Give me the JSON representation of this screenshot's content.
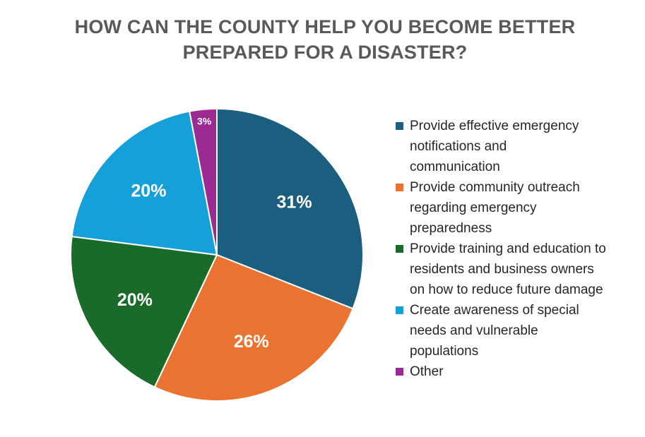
{
  "chart_data": {
    "type": "pie",
    "title": "HOW CAN THE COUNTY HELP YOU BECOME BETTER PREPARED FOR A DISASTER?",
    "title_lines": [
      "HOW CAN THE COUNTY HELP YOU BECOME BETTER",
      "PREPARED FOR A DISASTER?"
    ],
    "categories": [
      "Provide effective emergency notifications and communication",
      "Provide community outreach regarding emergency preparedness",
      "Provide training and education to residents and business owners on how to reduce future damage",
      "Create awareness of special needs and vulnerable populations",
      "Other"
    ],
    "legend_lines": [
      [
        "Provide effective emergency",
        "notifications and",
        "communication"
      ],
      [
        "Provide community outreach",
        "regarding emergency",
        "preparedness"
      ],
      [
        "Provide training and education to",
        "residents and business owners",
        "on how to reduce future damage"
      ],
      [
        "Create awareness of special",
        "needs and vulnerable",
        "populations"
      ],
      [
        "Other"
      ]
    ],
    "values": [
      31,
      26,
      20,
      20,
      3
    ],
    "data_labels": [
      "31%",
      "26%",
      "20%",
      "20%",
      "3%"
    ],
    "colors": [
      "#1b5e80",
      "#ea7331",
      "#1a6b2a",
      "#16a0d9",
      "#9c2a93"
    ],
    "start_angle": "12 o'clock",
    "direction": "clockwise",
    "legend_position": "right"
  }
}
